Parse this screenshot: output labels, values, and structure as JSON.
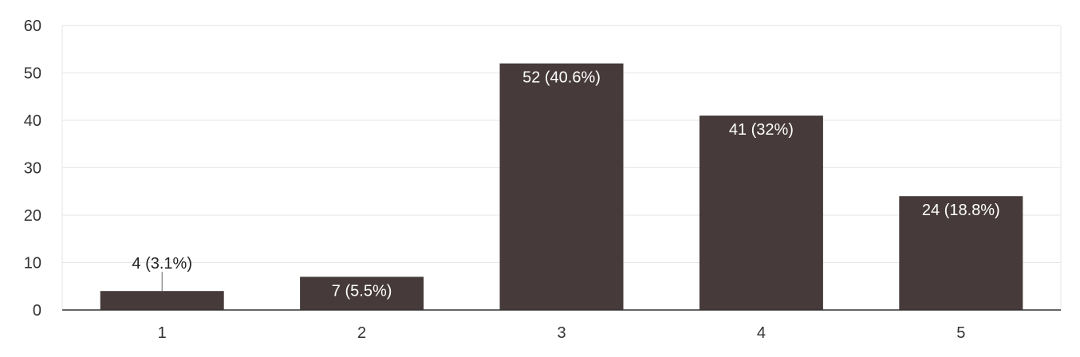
{
  "chart_data": {
    "type": "bar",
    "categories": [
      "1",
      "2",
      "3",
      "4",
      "5"
    ],
    "values": [
      4,
      7,
      52,
      41,
      24
    ],
    "data_labels": [
      "4 (3.1%)",
      "7 (5.5%)",
      "52 (40.6%)",
      "41 (32%)",
      "24 (18.8%)"
    ],
    "y_ticks": [
      "0",
      "10",
      "20",
      "30",
      "40",
      "50",
      "60"
    ],
    "ylim": [
      0,
      60
    ],
    "grid": true,
    "title": "",
    "xlabel": "",
    "ylabel": ""
  },
  "colors": {
    "bar": "#463a3a",
    "grid": "#e6e6e6",
    "axis": "#333333",
    "label_inside": "#ffffff",
    "label_outside": "#222222"
  }
}
